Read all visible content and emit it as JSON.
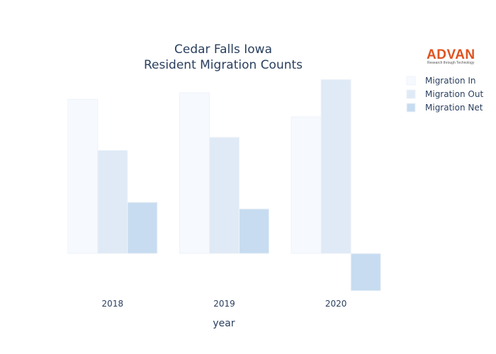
{
  "chart_data": {
    "type": "bar",
    "title_lines": [
      "Cedar Falls Iowa",
      "Resident Migration Counts"
    ],
    "xlabel": "year",
    "ylabel": "",
    "categories": [
      "2018",
      "2019",
      "2020"
    ],
    "series": [
      {
        "name": "Migration In",
        "color": "#f6f9fd",
        "values": [
          2110,
          2200,
          1870
        ]
      },
      {
        "name": "Migration Out",
        "color": "#dfeaf6",
        "values": [
          1410,
          1590,
          2380
        ]
      },
      {
        "name": "Migration Net",
        "color": "#c7dcf0",
        "values": [
          700,
          610,
          -510
        ]
      }
    ],
    "ylim": [
      -600,
      2500
    ],
    "grid": false,
    "y_ticks_visible": false,
    "legend_position": "top-right"
  },
  "logo": {
    "text": "ADVAN",
    "tagline": "Research through Technology",
    "color": "#e0521f"
  }
}
